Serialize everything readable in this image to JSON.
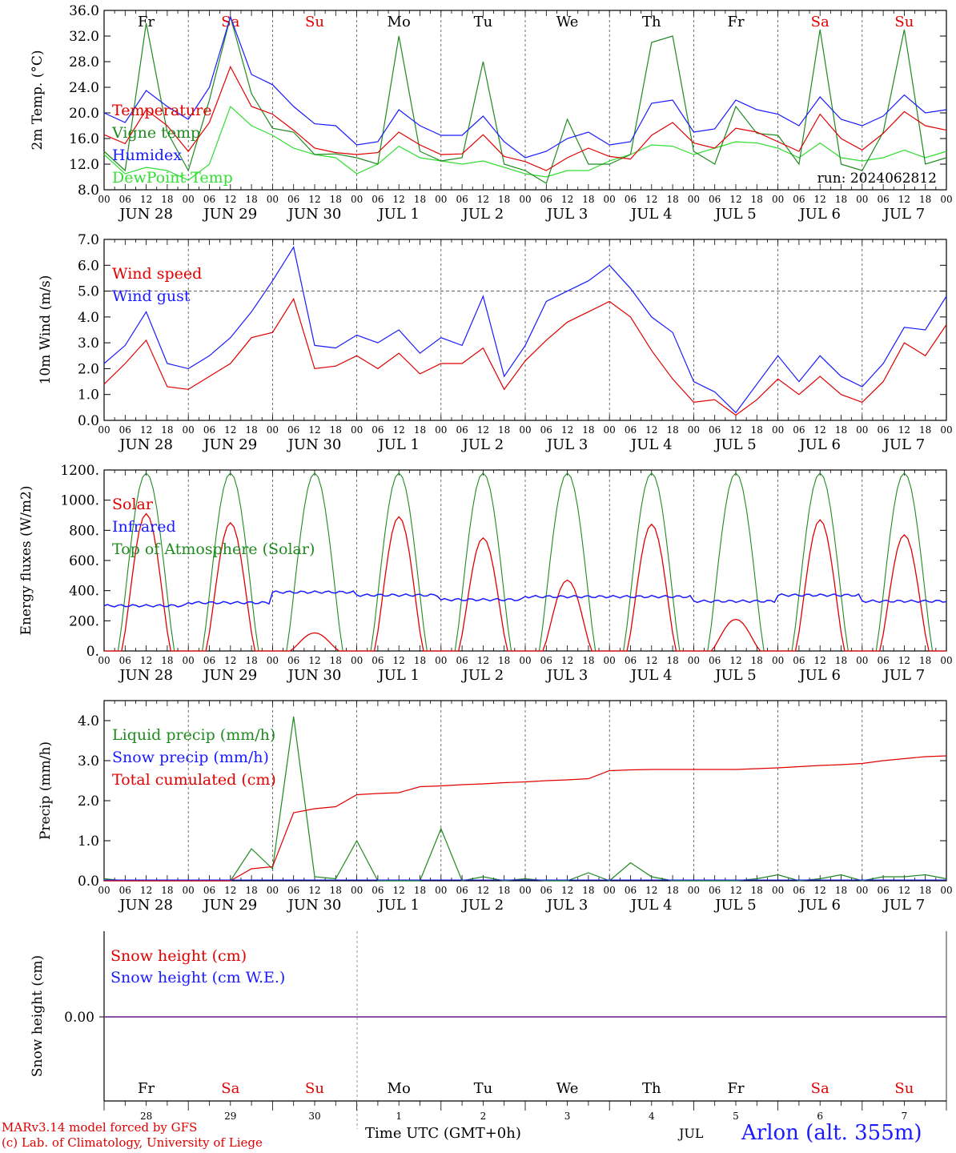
{
  "footer": {
    "credit_line1": "MARv3.14 model forced by GFS",
    "credit_line2": "(c) Lab. of Climatology, University of Liege",
    "xlabel": "Time UTC (GMT+0h)",
    "month": "JUL",
    "station": "Arlon (alt. 355m)"
  },
  "colors": {
    "red": "#e00000",
    "blue": "#1a1aff",
    "green": "#1f8a1f",
    "lightgreen": "#33dd33",
    "purple": "#7a3a9a",
    "black": "#000000"
  },
  "chart_data": [
    {
      "type": "line",
      "ylabel": "2m Temp. (°C)",
      "ylim": [
        8,
        36
      ],
      "ytick_labels": [
        "8.0",
        "12.0",
        "16.0",
        "20.0",
        "24.0",
        "28.0",
        "32.0",
        "36.0"
      ],
      "hour_labels": [
        "00",
        "06",
        "12",
        "18"
      ],
      "day_labels": [
        "JUN 28",
        "JUN 29",
        "JUN 30",
        "JUL  1",
        "JUL  2",
        "JUL  3",
        "JUL  4",
        "JUL  5",
        "JUL  6",
        "JUL  7"
      ],
      "weekday_labels": [
        "Fr",
        "Sa",
        "Su",
        "Mo",
        "Tu",
        "We",
        "Th",
        "Fr",
        "Sa",
        "Su"
      ],
      "weekend": [
        false,
        true,
        true,
        false,
        false,
        false,
        false,
        false,
        true,
        true
      ],
      "annotation": "run: 2024062812",
      "legend": [
        {
          "label": "Temperature",
          "color": "red"
        },
        {
          "label": "Vigne temp",
          "color": "green"
        },
        {
          "label": "Humidex",
          "color": "blue"
        },
        {
          "label": "DewPoint Temp",
          "color": "lightgreen"
        }
      ],
      "x": [
        0,
        6,
        12,
        18,
        24,
        30,
        36,
        42,
        48,
        54,
        60,
        66,
        72,
        78,
        84,
        90,
        96,
        102,
        108,
        114,
        120,
        126,
        132,
        138,
        144,
        150,
        156,
        162,
        168,
        174,
        180,
        186,
        192,
        198,
        204,
        210,
        216,
        222,
        228,
        234,
        240
      ],
      "series": [
        {
          "name": "Temperature",
          "color": "red",
          "values": [
            16.6,
            15.2,
            20.5,
            18.0,
            14.0,
            18.5,
            27.2,
            21.0,
            19.8,
            17.3,
            14.5,
            13.8,
            13.5,
            13.8,
            17.0,
            15.0,
            13.5,
            13.6,
            16.6,
            13.2,
            12.4,
            11.0,
            13.0,
            14.5,
            13.2,
            12.8,
            16.5,
            18.5,
            15.3,
            14.5,
            17.6,
            17.0,
            15.5,
            14.0,
            19.8,
            16.0,
            14.2,
            16.8,
            20.2,
            18.0,
            17.3
          ]
        },
        {
          "name": "Vigne temp",
          "color": "green",
          "values": [
            14.0,
            11.0,
            34.0,
            17.0,
            11.0,
            22.0,
            35.0,
            23.0,
            17.6,
            17.0,
            13.5,
            13.6,
            13.0,
            12.0,
            32.0,
            14.0,
            12.5,
            13.0,
            28.0,
            12.0,
            11.0,
            9.0,
            19.0,
            12.0,
            12.0,
            13.5,
            31.0,
            32.0,
            14.0,
            12.0,
            21.0,
            16.8,
            16.5,
            12.0,
            33.0,
            12.0,
            11.0,
            17.0,
            33.0,
            12.0,
            13.0
          ]
        },
        {
          "name": "Humidex",
          "color": "blue",
          "values": [
            20.0,
            18.5,
            23.5,
            21.0,
            19.0,
            24.0,
            35.0,
            26.0,
            24.4,
            21.0,
            18.3,
            18.0,
            15.0,
            15.5,
            20.5,
            18.0,
            16.5,
            16.5,
            19.5,
            15.5,
            13.0,
            14.0,
            16.0,
            17.0,
            15.0,
            15.5,
            21.5,
            22.0,
            17.0,
            17.5,
            22.0,
            20.5,
            19.8,
            18.0,
            22.5,
            19.0,
            18.0,
            19.5,
            22.8,
            20.0,
            20.5
          ]
        },
        {
          "name": "DewPoint Temp",
          "color": "lightgreen",
          "values": [
            13.5,
            10.5,
            11.5,
            11.0,
            9.5,
            12.0,
            21.0,
            18.0,
            16.5,
            14.5,
            13.5,
            13.0,
            10.5,
            12.0,
            14.8,
            13.0,
            12.5,
            12.0,
            12.5,
            11.5,
            10.5,
            10.0,
            11.0,
            11.0,
            12.5,
            13.5,
            15.0,
            14.8,
            13.5,
            14.5,
            15.5,
            15.3,
            14.5,
            13.0,
            15.3,
            13.0,
            12.5,
            13.0,
            14.2,
            13.0,
            14.0
          ]
        }
      ]
    },
    {
      "type": "line",
      "ylabel": "10m Wind (m/s)",
      "ylim": [
        0,
        7
      ],
      "ytick_labels": [
        "0.0",
        "1.0",
        "2.0",
        "3.0",
        "4.0",
        "5.0",
        "6.0",
        "7.0"
      ],
      "reference_line": 5.0,
      "hour_labels": [
        "00",
        "06",
        "12",
        "18"
      ],
      "day_labels": [
        "JUN 28",
        "JUN 29",
        "JUN 30",
        "JUL  1",
        "JUL  2",
        "JUL  3",
        "JUL  4",
        "JUL  5",
        "JUL  6",
        "JUL  7"
      ],
      "legend": [
        {
          "label": "Wind speed",
          "color": "red"
        },
        {
          "label": "Wind gust",
          "color": "blue"
        }
      ],
      "x": [
        0,
        6,
        12,
        18,
        24,
        30,
        36,
        42,
        48,
        54,
        60,
        66,
        72,
        78,
        84,
        90,
        96,
        102,
        108,
        114,
        120,
        126,
        132,
        138,
        144,
        150,
        156,
        162,
        168,
        174,
        180,
        186,
        192,
        198,
        204,
        210,
        216,
        222,
        228,
        234,
        240
      ],
      "series": [
        {
          "name": "Wind speed",
          "color": "red",
          "values": [
            1.4,
            2.2,
            3.1,
            1.3,
            1.2,
            1.7,
            2.2,
            3.2,
            3.4,
            4.7,
            2.0,
            2.1,
            2.5,
            2.0,
            2.6,
            1.8,
            2.2,
            2.2,
            2.8,
            1.2,
            2.3,
            3.1,
            3.8,
            4.2,
            4.6,
            4.0,
            2.7,
            1.6,
            0.7,
            0.8,
            0.2,
            0.8,
            1.6,
            1.0,
            1.7,
            1.0,
            0.7,
            1.5,
            3.0,
            2.5,
            3.7
          ]
        },
        {
          "name": "Wind gust",
          "color": "blue",
          "values": [
            2.2,
            2.9,
            4.2,
            2.2,
            2.0,
            2.5,
            3.2,
            4.2,
            5.4,
            6.7,
            2.9,
            2.8,
            3.3,
            3.0,
            3.5,
            2.6,
            3.2,
            2.9,
            4.8,
            1.7,
            2.9,
            4.6,
            5.0,
            5.4,
            6.0,
            5.1,
            4.0,
            3.4,
            1.5,
            1.1,
            0.3,
            1.4,
            2.5,
            1.5,
            2.5,
            1.7,
            1.3,
            2.2,
            3.6,
            3.5,
            4.8
          ]
        }
      ]
    },
    {
      "type": "line",
      "ylabel": "Energy fluxes (W/m2)",
      "ylim": [
        0,
        1200
      ],
      "ytick_labels": [
        "0.",
        "200.",
        "400.",
        "600.",
        "800.",
        "1000.",
        "1200."
      ],
      "hour_labels": [
        "00",
        "06",
        "12",
        "18"
      ],
      "day_labels": [
        "JUN 28",
        "JUN 29",
        "JUN 30",
        "JUL  1",
        "JUL  2",
        "JUL  3",
        "JUL  4",
        "JUL  5",
        "JUL  6",
        "JUL  7"
      ],
      "legend": [
        {
          "label": "Solar",
          "color": "red"
        },
        {
          "label": "Infrared",
          "color": "blue"
        },
        {
          "label": "Top of Atmosphere (Solar)",
          "color": "green"
        }
      ],
      "toa_peak": 1180,
      "solar_daily_peak": [
        910,
        850,
        120,
        890,
        750,
        470,
        840,
        210,
        870,
        770
      ],
      "infrared_level": [
        300,
        320,
        390,
        370,
        340,
        360,
        360,
        330,
        370,
        330
      ]
    },
    {
      "type": "line",
      "ylabel": "Precip (mm/h)",
      "ylim": [
        0,
        4.5
      ],
      "ytick_labels": [
        "0.0",
        "1.0",
        "2.0",
        "3.0",
        "4.0"
      ],
      "hour_labels": [
        "00",
        "06",
        "12",
        "18"
      ],
      "day_labels": [
        "JUN 28",
        "JUN 29",
        "JUN 30",
        "JUL  1",
        "JUL  2",
        "JUL  3",
        "JUL  4",
        "JUL  5",
        "JUL  6",
        "JUL  7"
      ],
      "legend": [
        {
          "label": "Liquid precip (mm/h)",
          "color": "green"
        },
        {
          "label": "Snow precip (mm/h)",
          "color": "blue"
        },
        {
          "label": "Total cumulated (cm)",
          "color": "red"
        }
      ],
      "x": [
        0,
        6,
        12,
        18,
        24,
        30,
        36,
        42,
        48,
        54,
        60,
        66,
        72,
        78,
        84,
        90,
        96,
        102,
        108,
        114,
        120,
        126,
        132,
        138,
        144,
        150,
        156,
        162,
        168,
        174,
        180,
        186,
        192,
        198,
        204,
        210,
        216,
        222,
        228,
        234,
        240
      ],
      "series": [
        {
          "name": "Liquid precip (mm/h)",
          "color": "green",
          "values": [
            0.05,
            0,
            0,
            0,
            0,
            0,
            0,
            0.8,
            0.3,
            4.1,
            0.1,
            0.05,
            1.0,
            0,
            0,
            0,
            1.3,
            0,
            0.1,
            0,
            0.05,
            0,
            0,
            0.2,
            0,
            0.45,
            0.1,
            0,
            0,
            0,
            0,
            0.05,
            0.15,
            0,
            0.05,
            0.15,
            0,
            0.1,
            0.1,
            0.15,
            0.05
          ]
        },
        {
          "name": "Total cumulated (cm)",
          "color": "red",
          "values": [
            0,
            0,
            0,
            0,
            0,
            0,
            0,
            0.3,
            0.35,
            1.7,
            1.8,
            1.85,
            2.15,
            2.18,
            2.2,
            2.35,
            2.37,
            2.4,
            2.42,
            2.45,
            2.47,
            2.5,
            2.52,
            2.55,
            2.75,
            2.77,
            2.78,
            2.78,
            2.78,
            2.78,
            2.78,
            2.8,
            2.82,
            2.85,
            2.88,
            2.9,
            2.93,
            3.0,
            3.05,
            3.1,
            3.12
          ]
        }
      ]
    },
    {
      "type": "line",
      "ylabel": "Snow height (cm)",
      "ytick_labels": [
        "0.00"
      ],
      "legend": [
        {
          "label": "Snow height (cm)",
          "color": "red"
        },
        {
          "label": "Snow height (cm W.E.)",
          "color": "blue"
        }
      ],
      "weekday_labels": [
        "Fr",
        "Sa",
        "Su",
        "Mo",
        "Tu",
        "We",
        "Th",
        "Fr",
        "Sa",
        "Su"
      ],
      "weekend": [
        false,
        true,
        true,
        false,
        false,
        false,
        false,
        false,
        true,
        true
      ],
      "daynum_labels": [
        "28",
        "29",
        "30",
        "1",
        "2",
        "3",
        "4",
        "5",
        "6",
        "7"
      ],
      "value": 0.0
    }
  ]
}
